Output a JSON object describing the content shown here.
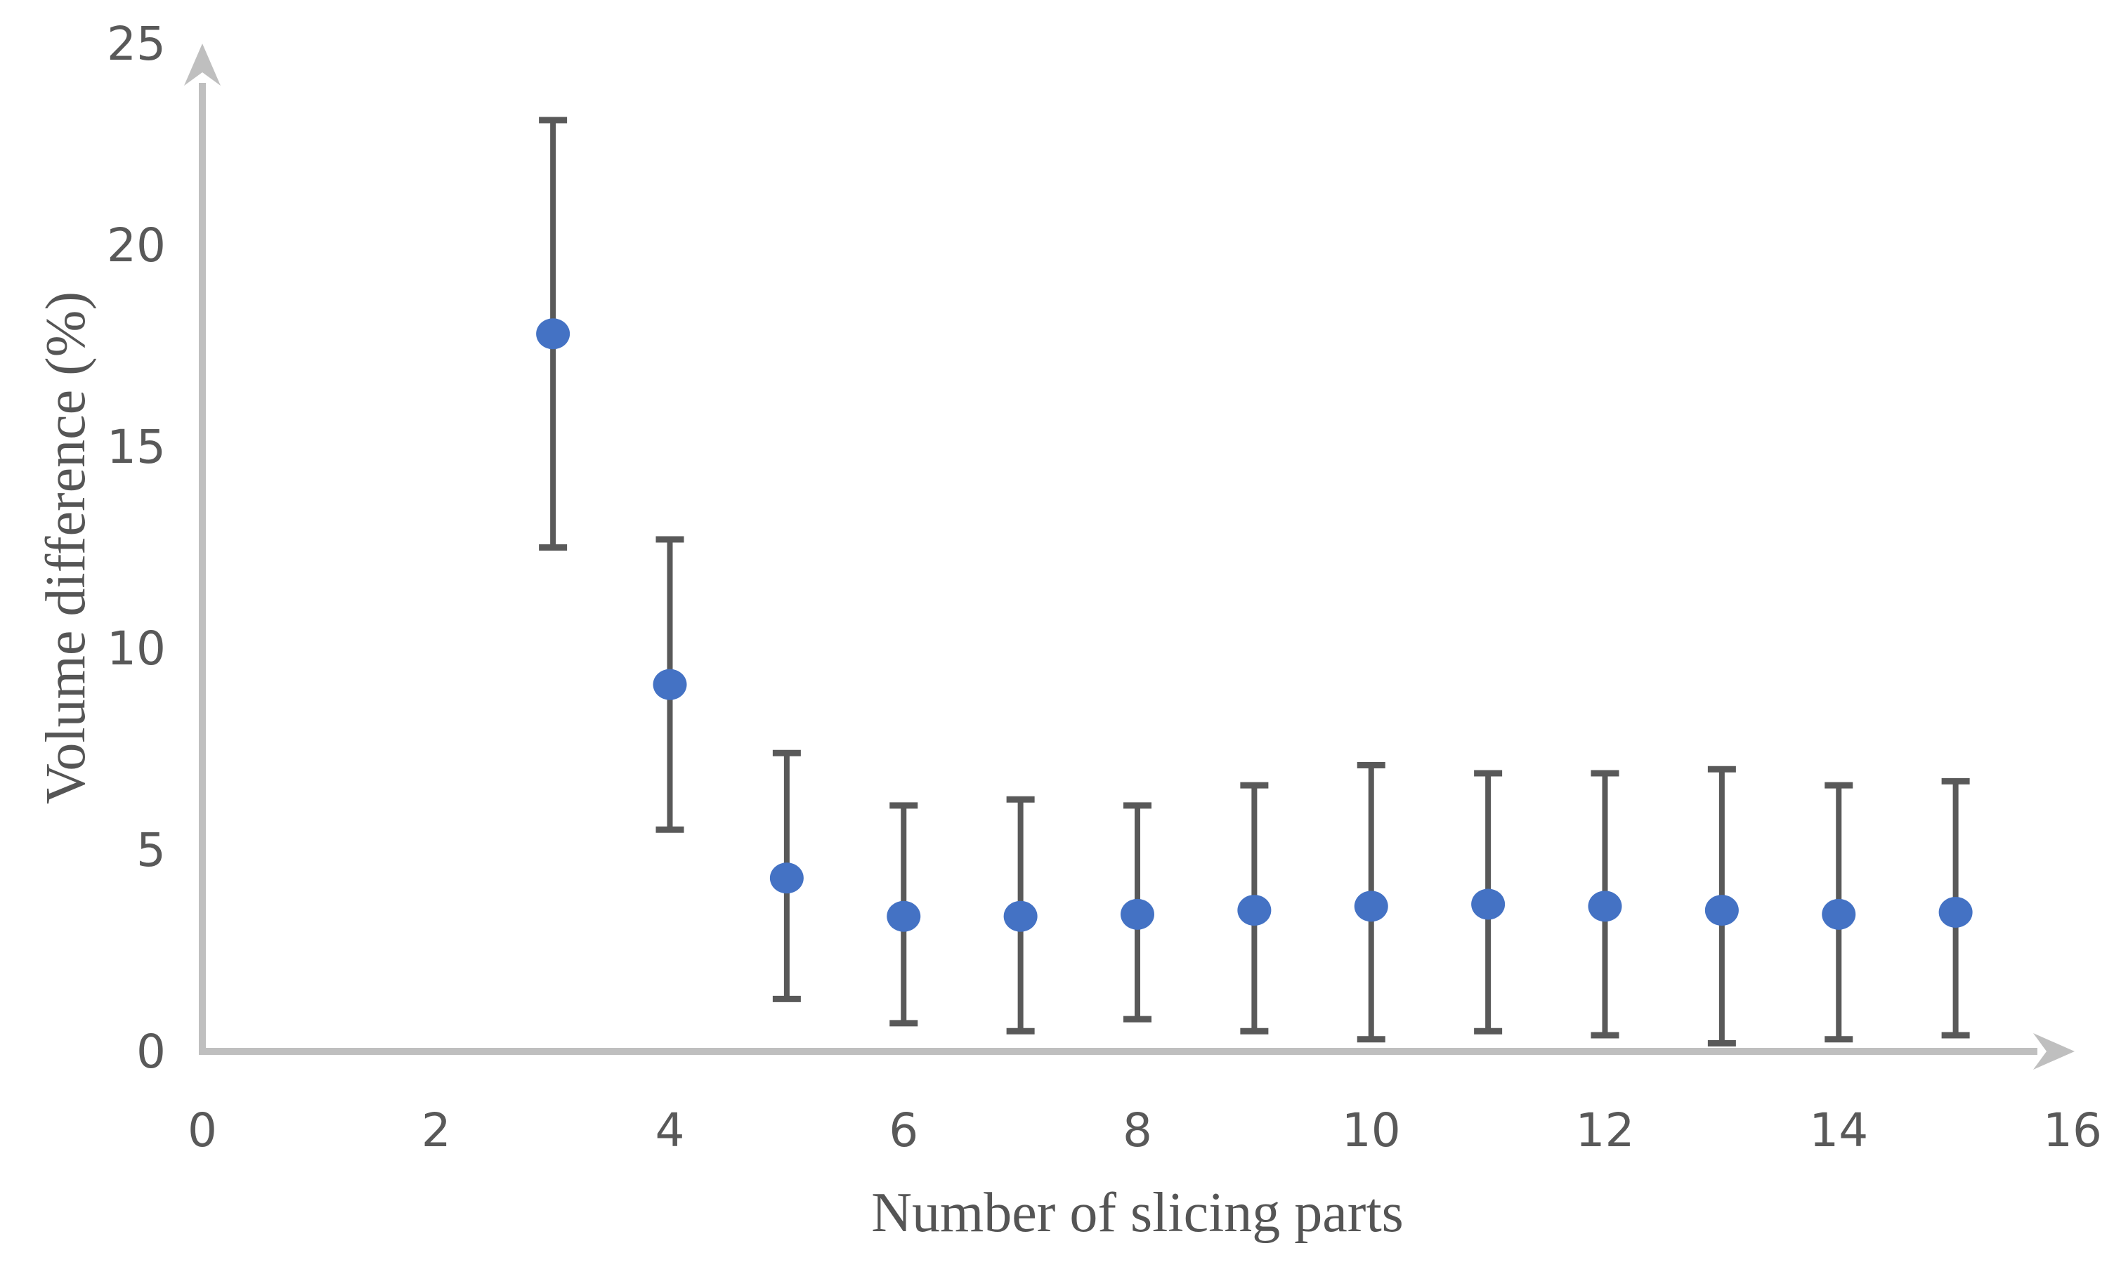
{
  "figure": {
    "background_color": "#ffffff",
    "x_axis_title": "Number of slicing parts",
    "y_axis_title": "Volume difference (%)"
  },
  "chart_data": {
    "type": "scatter",
    "title": "",
    "xlabel": "Number of slicing parts",
    "ylabel": "Volume difference (%)",
    "xlim": [
      0,
      16
    ],
    "ylim": [
      0,
      25
    ],
    "x_ticks": [
      0,
      2,
      4,
      6,
      8,
      10,
      12,
      14,
      16
    ],
    "y_ticks": [
      0,
      5,
      10,
      15,
      20,
      25
    ],
    "grid": false,
    "legend": false,
    "axes_have_arrows": true,
    "colors": {
      "marker": "#4472C4",
      "error_bar": "#595959",
      "axis_line": "#BFBFBF",
      "tick_text": "#595959",
      "title_text": "#555555"
    },
    "series": [
      {
        "marker": "circle",
        "color": "#4472C4",
        "error_bars": "vertical",
        "points": [
          {
            "x": 3,
            "y": 17.8,
            "y_min": 12.5,
            "y_max": 23.1
          },
          {
            "x": 4,
            "y": 9.1,
            "y_min": 5.5,
            "y_max": 12.7
          },
          {
            "x": 5,
            "y": 4.3,
            "y_min": 1.3,
            "y_max": 7.4
          },
          {
            "x": 6,
            "y": 3.35,
            "y_min": 0.7,
            "y_max": 6.1
          },
          {
            "x": 7,
            "y": 3.35,
            "y_min": 0.5,
            "y_max": 6.25
          },
          {
            "x": 8,
            "y": 3.4,
            "y_min": 0.8,
            "y_max": 6.1
          },
          {
            "x": 9,
            "y": 3.5,
            "y_min": 0.5,
            "y_max": 6.6
          },
          {
            "x": 10,
            "y": 3.6,
            "y_min": 0.3,
            "y_max": 7.1
          },
          {
            "x": 11,
            "y": 3.65,
            "y_min": 0.5,
            "y_max": 6.9
          },
          {
            "x": 12,
            "y": 3.6,
            "y_min": 0.4,
            "y_max": 6.9
          },
          {
            "x": 13,
            "y": 3.5,
            "y_min": 0.2,
            "y_max": 7.0
          },
          {
            "x": 14,
            "y": 3.4,
            "y_min": 0.3,
            "y_max": 6.6
          },
          {
            "x": 15,
            "y": 3.45,
            "y_min": 0.4,
            "y_max": 6.7
          }
        ]
      }
    ]
  }
}
